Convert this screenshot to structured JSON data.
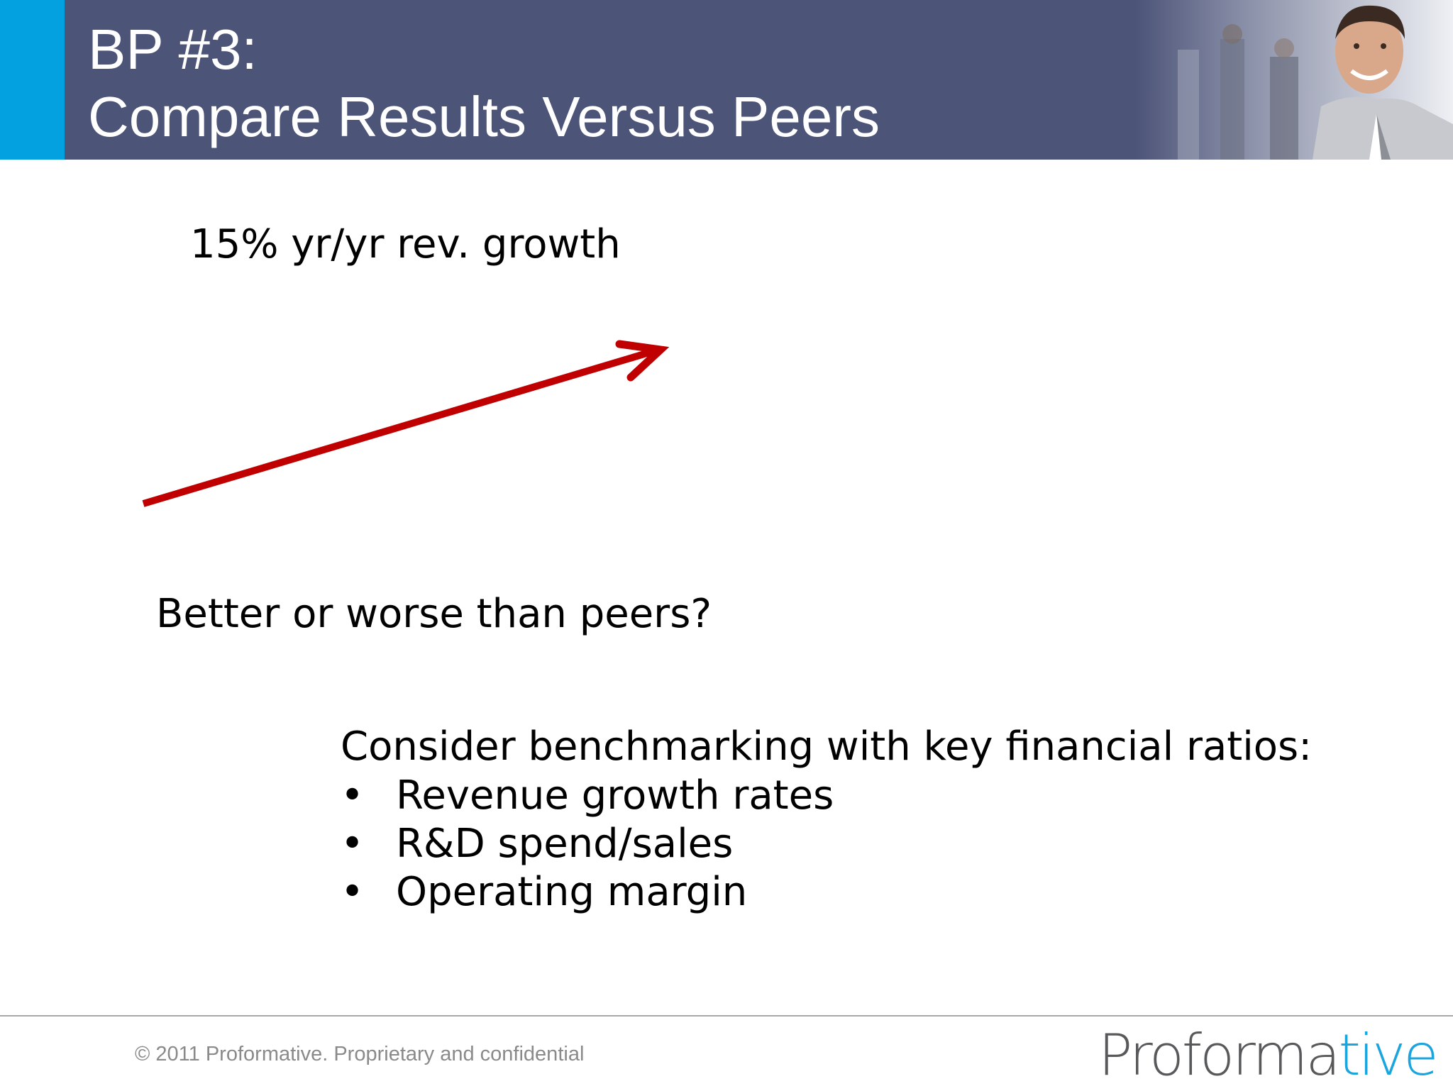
{
  "header": {
    "title_line1": "BP #3:",
    "title_line2": "Compare Results Versus Peers",
    "accent_color": "#03a1e0",
    "bar_color": "#4c5478"
  },
  "body": {
    "growth_text": "15% yr/yr rev. growth",
    "question_text": "Better or worse than peers?",
    "consider_text": "Consider benchmarking with key financial ratios:",
    "bullets": [
      {
        "mark": "•",
        "text": "Revenue growth rates"
      },
      {
        "mark": "•",
        "text": "R&D spend/sales"
      },
      {
        "mark": "•",
        "text": "Operating margin"
      }
    ],
    "arrow_color": "#c00000",
    "arrow_icon": "trend-up-arrow-icon"
  },
  "footer": {
    "copyright": "© 2011 Proformative. Proprietary and confidential",
    "logo_part1": "Proforma",
    "logo_part2": "tive",
    "logo_color_1": "#58595b",
    "logo_color_2": "#1aa5de"
  }
}
